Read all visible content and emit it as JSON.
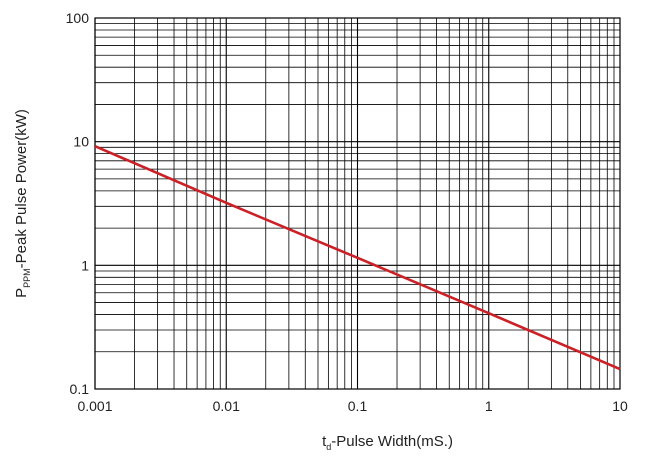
{
  "chart_data": {
    "type": "line",
    "title": "",
    "x_axis": {
      "label_prefix": "t",
      "label_sub": "d",
      "label_suffix": "-Pulse Width(mS.)",
      "scale": "log",
      "range": [
        0.001,
        10
      ],
      "ticks": [
        0.001,
        0.01,
        0.1,
        1,
        10
      ],
      "tick_labels": [
        "0.001",
        "0.01",
        "0.1",
        "1",
        "10"
      ]
    },
    "y_axis": {
      "label_prefix": "P",
      "label_sub": "PPM",
      "label_suffix": "-Peak Pulse Power(kW)",
      "scale": "log",
      "range": [
        0.1,
        100
      ],
      "ticks": [
        0.1,
        1,
        10,
        100
      ],
      "tick_labels": [
        "0.1",
        "1",
        "10",
        "100"
      ]
    },
    "grid": true,
    "series": [
      {
        "color": "#cc2027",
        "x": [
          0.001,
          0.01,
          0.1,
          1,
          10
        ],
        "y": [
          9.2,
          3.2,
          1.15,
          0.41,
          0.145
        ]
      }
    ]
  }
}
